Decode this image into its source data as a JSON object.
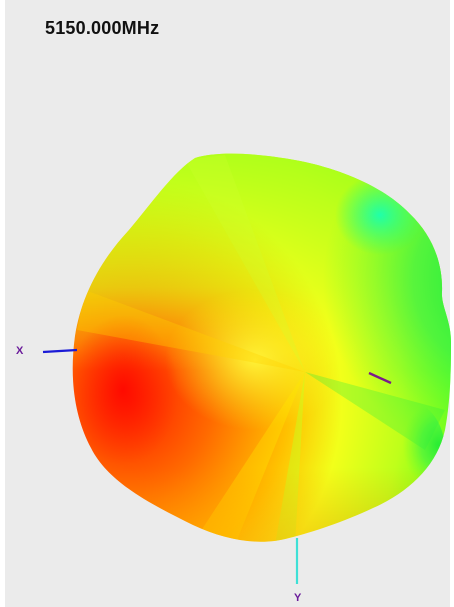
{
  "viewer": {
    "frequency_label": "5150.000MHz",
    "axes": {
      "x_label": "X",
      "y_label": "Y"
    },
    "colors": {
      "background": "#ebebeb",
      "x_axis": "#1a1ad6",
      "y_axis": "#3de0d6",
      "z_axis": "#7a1a8a",
      "gain_high": "#ff1a00",
      "gain_mid": "#f2ff1a",
      "gain_low": "#1aff66"
    }
  }
}
